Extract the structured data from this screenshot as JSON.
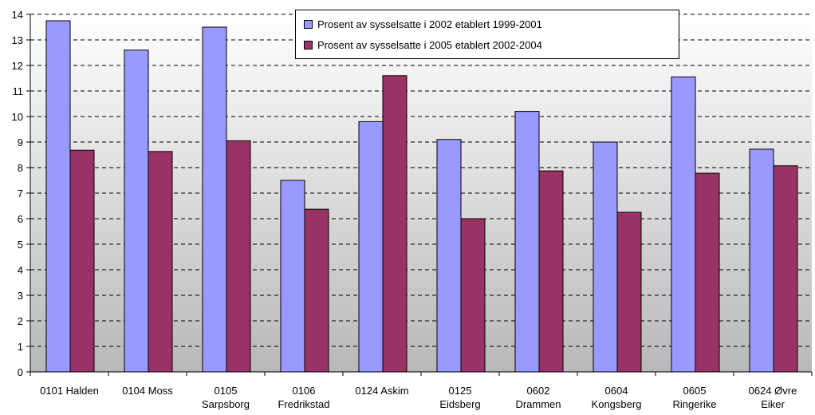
{
  "chart_data": {
    "type": "bar",
    "categories": [
      [
        "0101 Halden"
      ],
      [
        "0104 Moss"
      ],
      [
        "0105",
        "Sarpsborg"
      ],
      [
        "0106",
        "Fredrikstad"
      ],
      [
        "0124 Askim"
      ],
      [
        "0125",
        "Eidsberg"
      ],
      [
        "0602",
        "Drammen"
      ],
      [
        "0604",
        "Kongsberg"
      ],
      [
        "0605",
        "Ringerike"
      ],
      [
        "0624 Øvre",
        "Eiker"
      ]
    ],
    "series": [
      {
        "name": "Prosent av sysselsatte i 2002 etablert 1999-2001",
        "color": "#9999ff",
        "values": [
          13.75,
          12.6,
          13.5,
          7.5,
          9.8,
          9.1,
          10.2,
          9.0,
          11.55,
          8.72
        ]
      },
      {
        "name": "Prosent av sysselsatte i 2005 etablert 2002-2004",
        "color": "#993366",
        "values": [
          8.68,
          8.63,
          9.05,
          6.37,
          11.6,
          6.0,
          7.87,
          6.25,
          7.78,
          8.07
        ]
      }
    ],
    "ylim": [
      0,
      14
    ],
    "yticks": [
      0,
      1,
      2,
      3,
      4,
      5,
      6,
      7,
      8,
      9,
      10,
      11,
      12,
      13,
      14
    ],
    "grid": true,
    "legend_position": "top-center"
  }
}
